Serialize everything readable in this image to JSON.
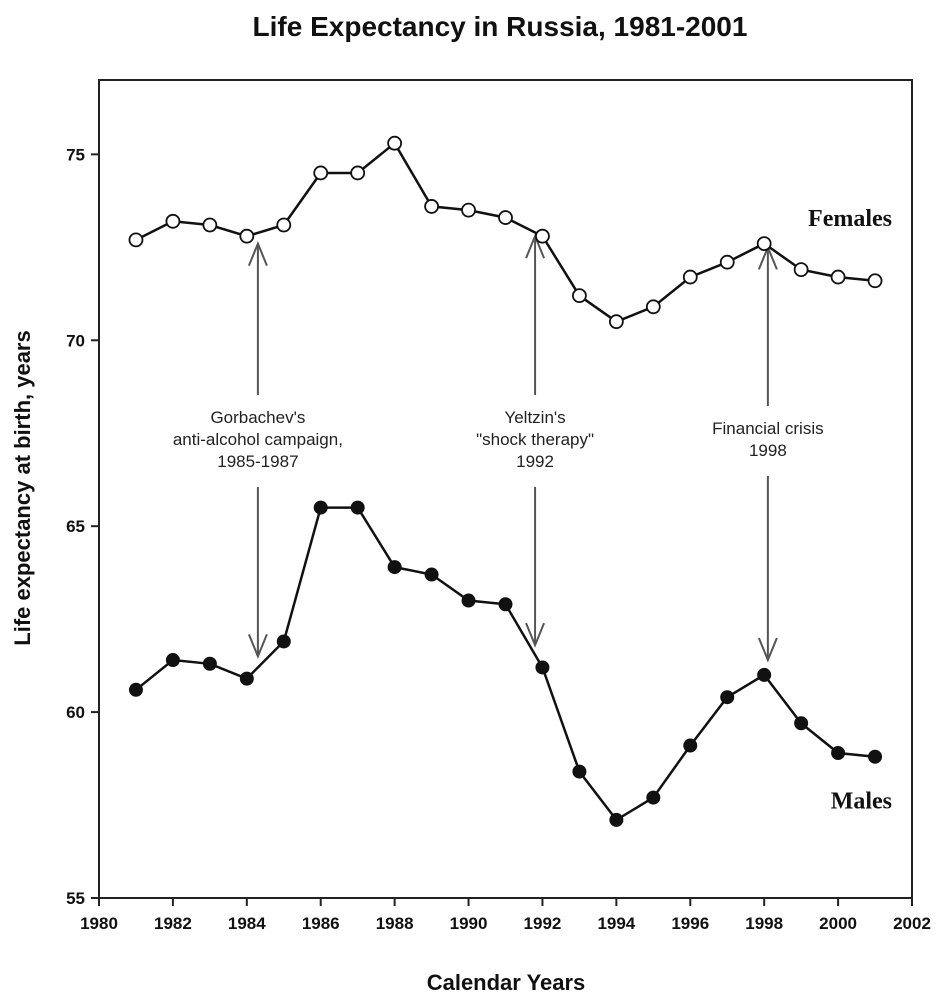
{
  "chart_data": {
    "type": "line",
    "title": "Life Expectancy in Russia, 1981-2001",
    "xlabel": "Calendar Years",
    "ylabel": "Life expectancy at birth, years",
    "xlim": [
      1980,
      2002
    ],
    "ylim": [
      55,
      77
    ],
    "xticks": [
      1980,
      1982,
      1984,
      1986,
      1988,
      1990,
      1992,
      1994,
      1996,
      1998,
      2000,
      2002
    ],
    "yticks": [
      55,
      60,
      65,
      70,
      75
    ],
    "grid": false,
    "x": [
      1981,
      1982,
      1983,
      1984,
      1985,
      1986,
      1987,
      1988,
      1989,
      1990,
      1991,
      1992,
      1993,
      1994,
      1995,
      1996,
      1997,
      1998,
      1999,
      2000,
      2001
    ],
    "series": [
      {
        "name": "Females",
        "marker": "open-circle",
        "values": [
          72.7,
          73.2,
          73.1,
          72.8,
          73.1,
          74.5,
          74.5,
          75.3,
          73.6,
          73.5,
          73.3,
          72.8,
          71.2,
          70.5,
          70.9,
          71.7,
          72.1,
          72.6,
          71.9,
          71.7,
          71.6
        ]
      },
      {
        "name": "Males",
        "marker": "filled-circle",
        "values": [
          60.6,
          61.4,
          61.3,
          60.9,
          61.9,
          65.5,
          65.5,
          63.9,
          63.7,
          63.0,
          62.9,
          61.2,
          58.4,
          57.1,
          57.7,
          59.1,
          60.4,
          61.0,
          59.7,
          58.9,
          58.8
        ]
      }
    ],
    "annotations": [
      {
        "lines": [
          "Gorbachev's",
          "anti-alcohol campaign,",
          "1985-1987"
        ],
        "x": 1984.3,
        "arrow_up_to": 72.6,
        "arrow_down_to": 61.5
      },
      {
        "lines": [
          "Yeltzin's",
          "\"shock therapy\"",
          "1992"
        ],
        "x": 1991.8,
        "arrow_up_to": 72.8,
        "arrow_down_to": 61.8
      },
      {
        "lines": [
          "Financial crisis",
          "1998"
        ],
        "x": 1998.1,
        "arrow_up_to": 72.5,
        "arrow_down_to": 61.4
      }
    ]
  }
}
